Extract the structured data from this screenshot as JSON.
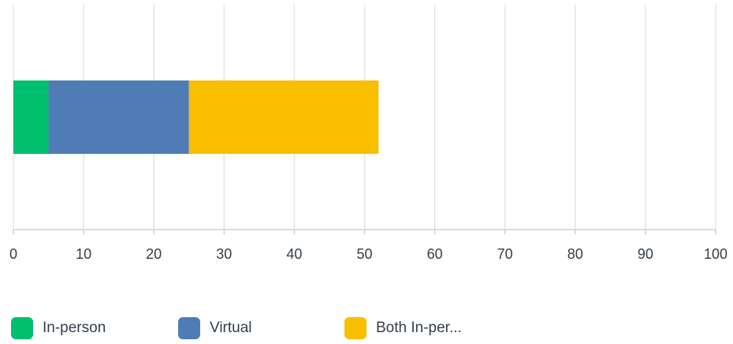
{
  "chart_data": {
    "type": "bar",
    "orientation": "horizontal",
    "stacked": true,
    "categories": [
      ""
    ],
    "series": [
      {
        "name": "In-person",
        "values": [
          5
        ],
        "color": "#00bf6f"
      },
      {
        "name": "Virtual",
        "values": [
          20
        ],
        "color": "#507cb6"
      },
      {
        "name": "Both In-per...",
        "values": [
          27
        ],
        "color": "#f9be00"
      }
    ],
    "xlim": [
      0,
      100
    ],
    "xticks": [
      0,
      10,
      20,
      30,
      40,
      50,
      60,
      70,
      80,
      90,
      100
    ],
    "xlabel": "",
    "ylabel": "",
    "title": "",
    "grid": "vertical",
    "legend_position": "bottom-left"
  }
}
